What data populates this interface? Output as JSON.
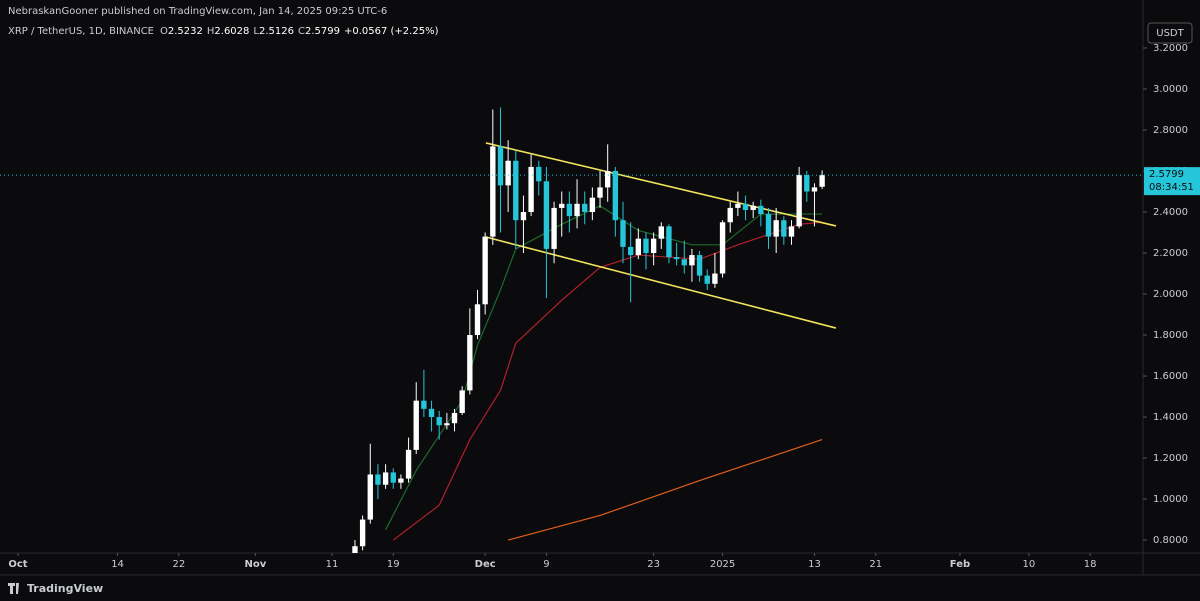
{
  "header": {
    "published": "NebraskanGooner published on TradingView.com, Jan 14, 2025 09:25 UTC-6"
  },
  "footer": {
    "brand": "TradingView"
  },
  "chart_data": {
    "type": "candlestick",
    "title": "XRP / TetherUS, 1D, BINANCE",
    "ohlc_labels": [
      "O",
      "H",
      "L",
      "C"
    ],
    "change": "+0.0567 (+2.25%)",
    "currency": "USDT",
    "countdown": "08:34:51",
    "up_color": "#ffffff",
    "down_color": "#26c6da",
    "x": [
      44,
      45,
      46,
      47,
      48,
      49,
      50,
      51,
      52,
      53,
      54,
      55,
      56,
      57,
      58,
      59,
      60,
      61,
      62,
      63,
      64,
      65,
      66,
      67,
      68,
      69,
      70,
      71,
      72,
      73,
      74,
      75,
      76,
      77,
      78,
      79,
      80,
      81,
      82,
      83,
      84,
      85,
      86,
      87,
      88,
      89,
      90,
      91,
      92,
      93,
      94,
      95,
      96,
      97,
      98,
      99,
      100,
      101,
      102,
      103,
      104,
      105
    ],
    "open": [
      0.72,
      0.77,
      0.9,
      1.12,
      1.07,
      1.13,
      1.08,
      1.1,
      1.24,
      1.48,
      1.44,
      1.4,
      1.36,
      1.37,
      1.42,
      1.53,
      1.8,
      1.95,
      2.28,
      2.72,
      2.53,
      2.65,
      2.36,
      2.4,
      2.62,
      2.55,
      2.22,
      2.42,
      2.44,
      2.38,
      2.44,
      2.4,
      2.47,
      2.52,
      2.6,
      2.36,
      2.23,
      2.19,
      2.27,
      2.2,
      2.27,
      2.33,
      2.18,
      2.17,
      2.14,
      2.19,
      2.09,
      2.05,
      2.1,
      2.35,
      2.42,
      2.44,
      2.41,
      2.43,
      2.39,
      2.28,
      2.36,
      2.28,
      2.33,
      2.58,
      2.5,
      2.5232
    ],
    "high": [
      0.8,
      0.92,
      1.27,
      1.17,
      1.17,
      1.15,
      1.12,
      1.3,
      1.57,
      1.63,
      1.48,
      1.43,
      1.42,
      1.44,
      1.55,
      1.93,
      2.02,
      2.3,
      2.9,
      2.91,
      2.75,
      2.7,
      2.48,
      2.68,
      2.65,
      2.62,
      2.45,
      2.5,
      2.5,
      2.56,
      2.5,
      2.52,
      2.6,
      2.73,
      2.62,
      2.45,
      2.35,
      2.32,
      2.3,
      2.3,
      2.35,
      2.34,
      2.25,
      2.26,
      2.22,
      2.21,
      2.12,
      2.2,
      2.36,
      2.45,
      2.5,
      2.48,
      2.45,
      2.46,
      2.42,
      2.42,
      2.38,
      2.36,
      2.62,
      2.6,
      2.54,
      2.6028
    ],
    "low": [
      0.7,
      0.75,
      0.88,
      1.0,
      1.05,
      1.05,
      1.05,
      1.08,
      1.22,
      1.4,
      1.33,
      1.29,
      1.34,
      1.33,
      1.41,
      1.51,
      1.78,
      1.9,
      2.24,
      2.3,
      2.4,
      2.22,
      2.2,
      2.38,
      2.48,
      1.98,
      2.15,
      2.28,
      2.3,
      2.32,
      2.34,
      2.36,
      2.42,
      2.45,
      2.28,
      2.15,
      1.96,
      2.17,
      2.12,
      2.14,
      2.22,
      2.15,
      2.14,
      2.1,
      2.06,
      2.06,
      2.02,
      2.03,
      2.08,
      2.3,
      2.38,
      2.36,
      2.37,
      2.33,
      2.22,
      2.2,
      2.24,
      2.24,
      2.32,
      2.45,
      2.33,
      2.5126
    ],
    "close": [
      0.77,
      0.9,
      1.12,
      1.07,
      1.13,
      1.08,
      1.1,
      1.24,
      1.48,
      1.44,
      1.4,
      1.36,
      1.37,
      1.42,
      1.53,
      1.8,
      1.95,
      2.28,
      2.72,
      2.53,
      2.65,
      2.36,
      2.4,
      2.62,
      2.55,
      2.22,
      2.42,
      2.44,
      2.38,
      2.44,
      2.4,
      2.47,
      2.52,
      2.6,
      2.36,
      2.23,
      2.19,
      2.27,
      2.2,
      2.27,
      2.33,
      2.18,
      2.17,
      2.14,
      2.19,
      2.09,
      2.05,
      2.1,
      2.35,
      2.42,
      2.44,
      2.41,
      2.43,
      2.39,
      2.28,
      2.36,
      2.28,
      2.33,
      2.58,
      2.5,
      2.52,
      2.5799
    ],
    "series": [
      {
        "color": "#1e6b2a",
        "x": [
          48,
          52,
          58,
          60,
          63,
          65,
          71,
          76,
          81,
          88,
          92,
          97,
          105
        ],
        "values": [
          0.85,
          1.14,
          1.48,
          1.75,
          2.02,
          2.22,
          2.34,
          2.43,
          2.31,
          2.24,
          2.24,
          2.39,
          2.39
        ]
      },
      {
        "color": "#b3202a",
        "x": [
          49,
          55,
          59,
          63,
          65,
          69,
          71,
          76,
          81,
          89,
          94,
          102,
          105
        ],
        "values": [
          0.8,
          0.97,
          1.29,
          1.53,
          1.76,
          1.9,
          1.97,
          2.13,
          2.19,
          2.17,
          2.24,
          2.34,
          2.35
        ]
      },
      {
        "color": "#e0601a",
        "x": [
          64,
          76,
          89,
          105
        ],
        "values": [
          0.8,
          0.92,
          1.09,
          1.29
        ]
      }
    ],
    "trendlines": [
      {
        "color": "#f2e45c",
        "x": [
          61.1,
          106.8
        ],
        "values": [
          2.737,
          2.332
        ]
      },
      {
        "color": "#f2e45c",
        "x": [
          61.1,
          106.8
        ],
        "values": [
          2.278,
          1.834
        ]
      }
    ],
    "xlim": [
      -2.35,
      146.9
    ],
    "ylim": [
      0.737,
      3.434
    ],
    "xticks": [
      {
        "value": 0,
        "label": "Oct"
      },
      {
        "value": 13,
        "label": "14"
      },
      {
        "value": 21,
        "label": "22"
      },
      {
        "value": 31,
        "label": "Nov"
      },
      {
        "value": 41,
        "label": "11"
      },
      {
        "value": 49,
        "label": "19"
      },
      {
        "value": 61,
        "label": "Dec"
      },
      {
        "value": 69,
        "label": "9"
      },
      {
        "value": 83,
        "label": "23"
      },
      {
        "value": 92,
        "label": "2025"
      },
      {
        "value": 104,
        "label": "13"
      },
      {
        "value": 112,
        "label": "21"
      },
      {
        "value": 123,
        "label": "Feb"
      },
      {
        "value": 132,
        "label": "10"
      },
      {
        "value": 140,
        "label": "18"
      }
    ],
    "yticks": [
      {
        "value": 0.8,
        "label": "0.8000"
      },
      {
        "value": 1.0,
        "label": "1.0000"
      },
      {
        "value": 1.2,
        "label": "1.2000"
      },
      {
        "value": 1.4,
        "label": "1.4000"
      },
      {
        "value": 1.6,
        "label": "1.6000"
      },
      {
        "value": 1.8,
        "label": "1.8000"
      },
      {
        "value": 2.0,
        "label": "2.0000"
      },
      {
        "value": 2.2,
        "label": "2.2000"
      },
      {
        "value": 2.4,
        "label": "2.4000"
      },
      {
        "value": 2.6,
        "label": "2.6000"
      },
      {
        "value": 2.8,
        "label": "2.8000"
      },
      {
        "value": 3.0,
        "label": "3.0000"
      },
      {
        "value": 3.2,
        "label": "3.2000"
      }
    ]
  }
}
